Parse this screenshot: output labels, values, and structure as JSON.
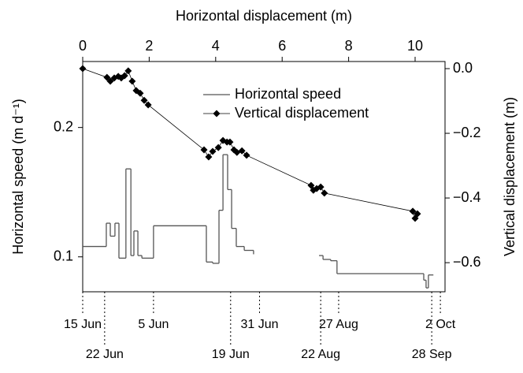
{
  "chart_data": {
    "type": "line",
    "x_label": "Horizontal displacement (m)",
    "y_label": "Horizontal speed (m d⁻¹)",
    "y2_label": "Vertical displacement (m)",
    "xlim": [
      0,
      10.9
    ],
    "xticks": [
      0,
      2,
      4,
      6,
      8,
      10
    ],
    "ylim": [
      0.073,
      0.251
    ],
    "yticks": [
      0.1,
      0.2
    ],
    "y2lim": [
      -0.69,
      0.022
    ],
    "y2ticks": [
      {
        "value": 0,
        "label": "0.0"
      },
      {
        "value": -0.2,
        "label": "−0.2"
      },
      {
        "value": -0.4,
        "label": "−0.4"
      },
      {
        "value": -0.6,
        "label": "−0.6"
      }
    ],
    "series": [
      {
        "name": "Horizontal speed",
        "color": "#555555",
        "style": "step",
        "x": [
          0,
          0.71,
          0.83,
          0.97,
          1.09,
          1.3,
          1.45,
          1.54,
          1.66,
          1.78,
          2.13,
          3.72,
          3.91,
          4.1,
          4.22,
          4.36,
          4.48,
          4.62,
          4.86,
          5.14,
          null,
          7.11,
          7.23,
          7.46,
          7.65,
          10.26,
          10.33,
          10.4,
          10.55
        ],
        "values": [
          0.108,
          0.126,
          0.116,
          0.126,
          0.099,
          0.168,
          0.101,
          0.12,
          0.101,
          0.099,
          0.124,
          0.096,
          0.095,
          0.136,
          0.179,
          0.152,
          0.122,
          0.108,
          0.105,
          0.102,
          null,
          0.101,
          0.098,
          0.097,
          0.087,
          0.082,
          0.076,
          0.086,
          0.086
        ]
      },
      {
        "name": "Vertical displacement",
        "color": "#000000",
        "style": "line-marker",
        "axis": "y2",
        "x": [
          0,
          0.73,
          0.83,
          0.95,
          1.07,
          1.16,
          1.26,
          1.37,
          1.49,
          1.61,
          1.73,
          1.85,
          1.97,
          3.65,
          3.79,
          3.91,
          4.08,
          4.22,
          4.34,
          4.43,
          4.55,
          4.64,
          4.79,
          4.93,
          6.87,
          6.94,
          7.04,
          7.16,
          7.27,
          9.93,
          10.0,
          10.07
        ],
        "values": [
          0,
          -0.027,
          -0.039,
          -0.029,
          -0.024,
          -0.029,
          -0.022,
          -0.007,
          -0.039,
          -0.068,
          -0.076,
          -0.098,
          -0.112,
          -0.251,
          -0.273,
          -0.256,
          -0.244,
          -0.222,
          -0.227,
          -0.227,
          -0.251,
          -0.259,
          -0.254,
          -0.268,
          -0.361,
          -0.376,
          -0.371,
          -0.366,
          -0.385,
          -0.441,
          -0.463,
          -0.449
        ]
      }
    ],
    "date_annotations": [
      {
        "label": "15 Jun",
        "x": 0
      },
      {
        "label": "22 Jun",
        "x": 0.66
      },
      {
        "label": "5 Jun",
        "x": 2.13
      },
      {
        "label": "19 Jun",
        "x": 4.45
      },
      {
        "label": "31 Jun",
        "x": 5.32
      },
      {
        "label": "22 Aug",
        "x": 7.16
      },
      {
        "label": "27 Aug",
        "x": 7.7
      },
      {
        "label": "28 Sep",
        "x": 10.5
      },
      {
        "label": "2 Oct",
        "x": 10.76
      }
    ]
  }
}
